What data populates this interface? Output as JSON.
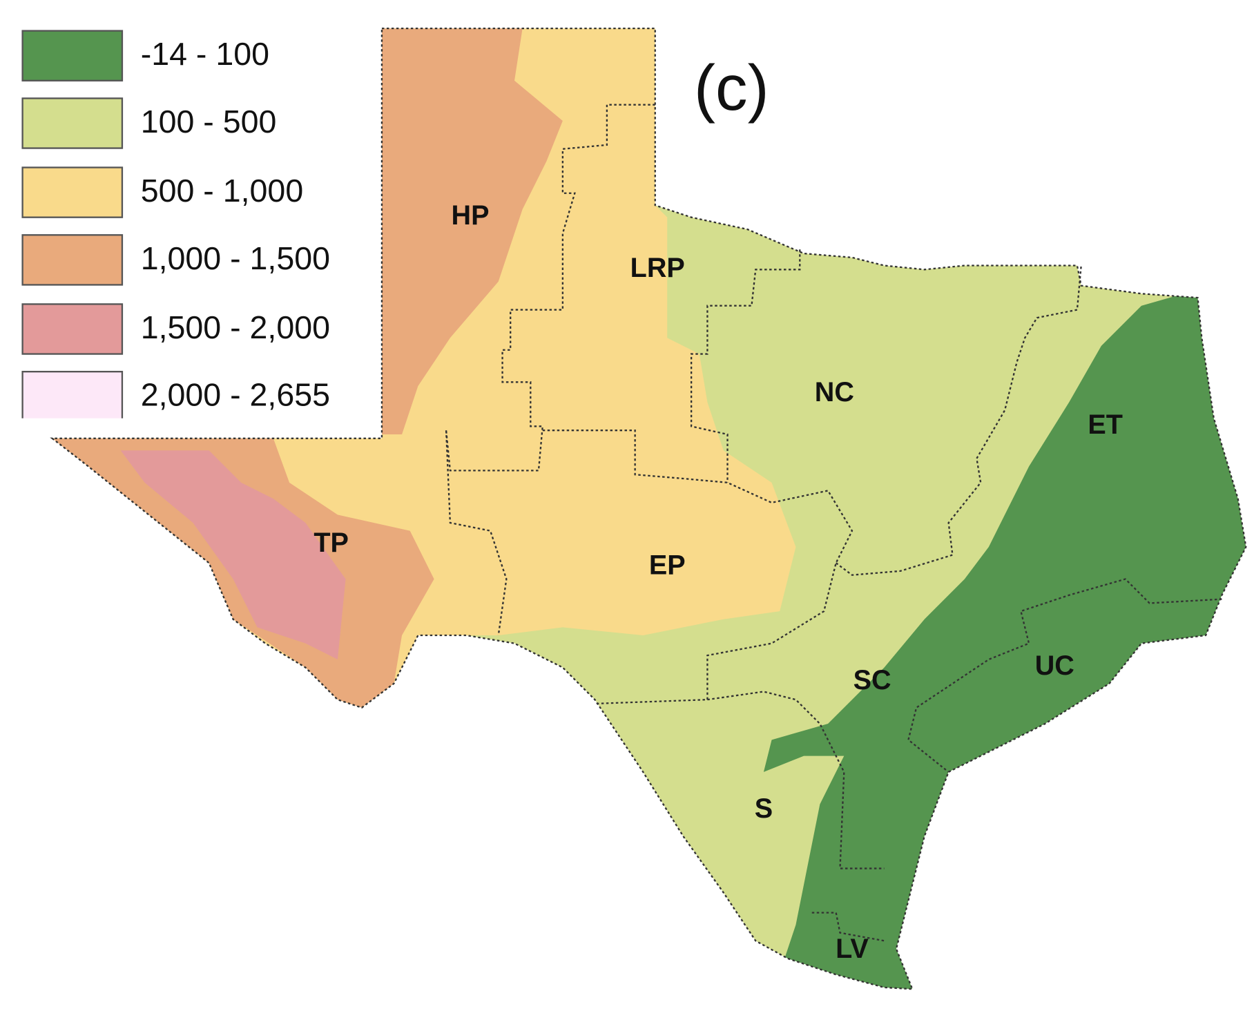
{
  "panel_label": "(c)",
  "legend": [
    {
      "label": "-14 - 100",
      "color": "#55954f"
    },
    {
      "label": "100 - 500",
      "color": "#d4de8e"
    },
    {
      "label": "500 - 1,000",
      "color": "#f9da8b"
    },
    {
      "label": "1,000 - 1,500",
      "color": "#e9aa7c"
    },
    {
      "label": "1,500 - 2,000",
      "color": "#e39a9a"
    },
    {
      "label": "2,000 - 2,655",
      "color": "#fde8f8"
    }
  ],
  "regions": [
    {
      "label": "HP"
    },
    {
      "label": "LRP"
    },
    {
      "label": "NC"
    },
    {
      "label": "ET"
    },
    {
      "label": "TP"
    },
    {
      "label": "EP"
    },
    {
      "label": "SC"
    },
    {
      "label": "UC"
    },
    {
      "label": "S"
    },
    {
      "label": "LV"
    }
  ]
}
